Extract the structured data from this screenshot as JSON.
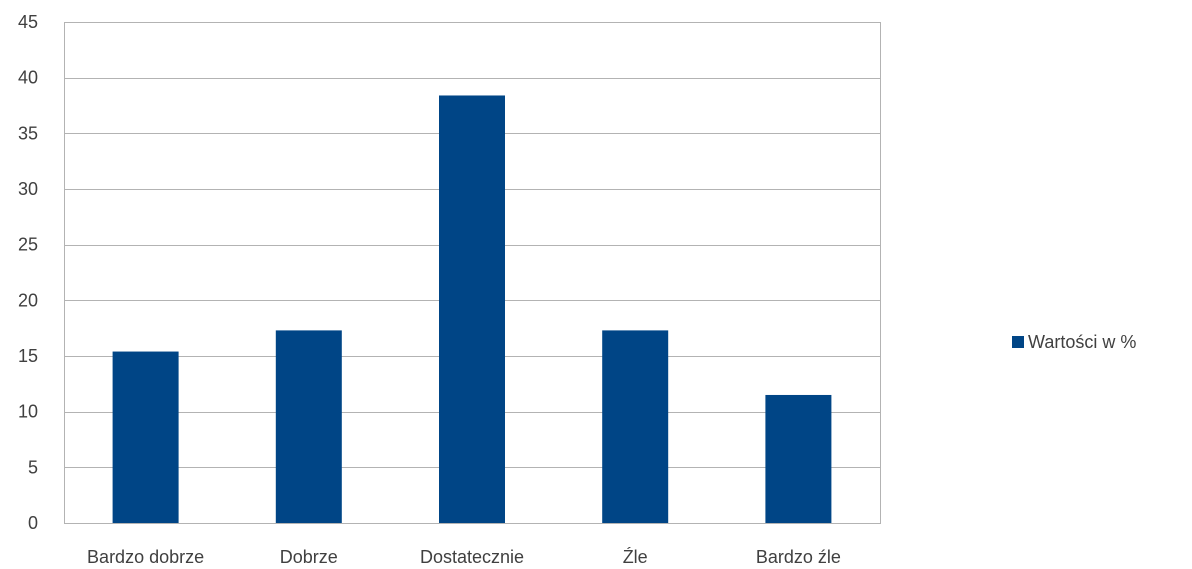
{
  "chart_data": {
    "type": "bar",
    "categories": [
      "Bardzo dobrze",
      "Dobrze",
      "Dostatecznie",
      "Źle",
      "Bardzo źle"
    ],
    "series": [
      {
        "name": "Wartości w %",
        "values": [
          15.4,
          17.3,
          38.4,
          17.3,
          11.5
        ],
        "color": "#004586"
      }
    ],
    "ylim": [
      0,
      45
    ],
    "yticks": [
      0,
      5,
      10,
      15,
      20,
      25,
      30,
      35,
      40,
      45
    ],
    "grid": true,
    "legend_position": "right",
    "bar_color": "#004586",
    "grid_color": "#b3b3b3"
  }
}
